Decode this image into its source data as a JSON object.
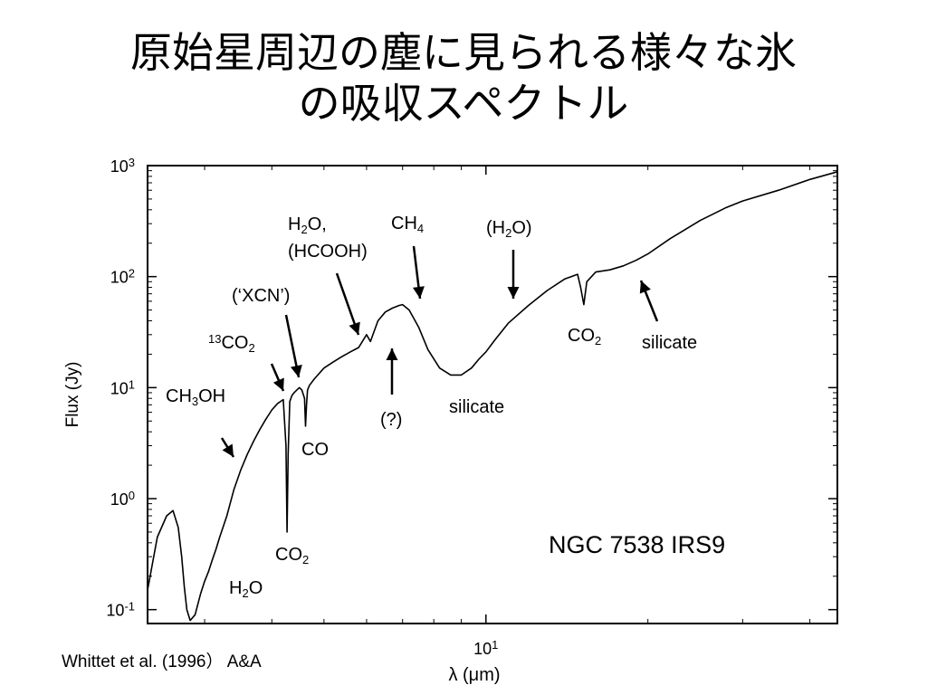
{
  "slide": {
    "title_line1": "原始星周辺の塵に見られる様々な氷",
    "title_line2": "の吸収スペクトル",
    "citation": "Whittet et al. (1996） A&A"
  },
  "chart_data": {
    "type": "line",
    "title": "",
    "xlabel": "λ (μm)",
    "ylabel": "Flux (Jy)",
    "x_scale": "log",
    "y_scale": "log",
    "xlim": [
      2.35,
      45
    ],
    "ylim": [
      0.075,
      1000
    ],
    "x_major_tick_label": {
      "x": 10,
      "base": "10",
      "exp": "1"
    },
    "y_tick_labels": [
      {
        "y": 0.1,
        "base": "10",
        "exp": "-1"
      },
      {
        "y": 1,
        "base": "10",
        "exp": "0"
      },
      {
        "y": 10,
        "base": "10",
        "exp": "1"
      },
      {
        "y": 100,
        "base": "10",
        "exp": "2"
      },
      {
        "y": 1000,
        "base": "10",
        "exp": "3"
      }
    ],
    "object_label": "NGC 7538  IRS9",
    "grid": false,
    "series": [
      {
        "name": "",
        "x": [
          2.35,
          2.45,
          2.55,
          2.62,
          2.68,
          2.72,
          2.75,
          2.78,
          2.82,
          2.88,
          2.95,
          3.0,
          3.05,
          3.1,
          3.15,
          3.2,
          3.3,
          3.4,
          3.5,
          3.6,
          3.7,
          3.8,
          3.9,
          4.0,
          4.1,
          4.2,
          4.25,
          4.27,
          4.29,
          4.32,
          4.36,
          4.4,
          4.45,
          4.5,
          4.55,
          4.6,
          4.62,
          4.64,
          4.66,
          4.7,
          4.8,
          5.0,
          5.2,
          5.4,
          5.6,
          5.8,
          6.0,
          6.1,
          6.3,
          6.5,
          6.7,
          6.9,
          7.0,
          7.2,
          7.5,
          7.8,
          8.2,
          8.6,
          9.0,
          9.4,
          9.7,
          10.0,
          10.4,
          11.0,
          12.0,
          13.0,
          14.0,
          14.8,
          15.0,
          15.2,
          15.4,
          16.0,
          17.0,
          18.0,
          19.0,
          20.0,
          22.0,
          25.0,
          28.0,
          30.0,
          35.0,
          40.0,
          45.0
        ],
        "y": [
          0.15,
          0.45,
          0.7,
          0.78,
          0.55,
          0.3,
          0.16,
          0.1,
          0.08,
          0.09,
          0.14,
          0.18,
          0.22,
          0.28,
          0.35,
          0.45,
          0.7,
          1.2,
          1.8,
          2.5,
          3.3,
          4.2,
          5.2,
          6.3,
          7.2,
          7.8,
          3.0,
          0.5,
          2.5,
          7.5,
          8.5,
          9.0,
          9.5,
          10.0,
          9.5,
          8.0,
          4.5,
          7.0,
          9.5,
          10.5,
          12.0,
          15.0,
          17.0,
          19.0,
          21.0,
          23.0,
          30.0,
          26.0,
          40.0,
          48.0,
          52.0,
          55.0,
          56.0,
          50.0,
          35.0,
          22.0,
          15.0,
          13.0,
          13.0,
          15.0,
          18.0,
          21.0,
          27.0,
          38.0,
          55.0,
          75.0,
          95.0,
          105.0,
          80.0,
          56.0,
          90.0,
          110.0,
          115.0,
          125.0,
          140.0,
          160.0,
          220.0,
          320.0,
          420.0,
          480.0,
          600.0,
          750.0,
          880.0
        ]
      }
    ],
    "annotations": [
      {
        "lines": [
          {
            "t": "CH",
            "sub": "3",
            "t2": "OH"
          }
        ],
        "x": 3.5,
        "y": 2.4
      },
      {
        "lines": [
          {
            "sup": "13",
            "t": "CO",
            "sub": "2"
          }
        ],
        "x": 4.38,
        "y": 7.8
      },
      {
        "lines": [
          {
            "t": "(‘XCN’)"
          }
        ],
        "x": 4.62,
        "y": 8.6
      },
      {
        "lines": [
          {
            "t": "H",
            "sub": "2",
            "t2": "O,"
          },
          {
            "t": "(HCOOH)"
          }
        ],
        "x": 6.0,
        "y": 28
      },
      {
        "lines": [
          {
            "t": "(?)"
          }
        ],
        "x": 6.85,
        "y": 25
      },
      {
        "lines": [
          {
            "t": "CH",
            "sub": "4"
          }
        ],
        "x": 7.7,
        "y": 60
      },
      {
        "lines": [
          {
            "t": "(H",
            "sub": "2",
            "t2": "O)"
          }
        ],
        "x": 12.0,
        "y": 80
      },
      {
        "lines": [
          {
            "t": "CO",
            "sub": "2"
          }
        ],
        "x": 15.2,
        "y": 45
      },
      {
        "lines": [
          {
            "t": "silicate"
          }
        ],
        "x": 20.0,
        "y": 120
      },
      {
        "lines": [
          {
            "t": "silicate"
          }
        ],
        "x": 9.7,
        "y": 9.0
      },
      {
        "lines": [
          {
            "t": "CO"
          }
        ],
        "x": 4.6,
        "y": 2.0
      },
      {
        "lines": [
          {
            "t": "CO",
            "sub": "2"
          }
        ],
        "x": 4.27,
        "y": 0.3
      },
      {
        "lines": [
          {
            "t": "H",
            "sub": "2",
            "t2": "O"
          }
        ],
        "x": 3.05,
        "y": 0.1
      }
    ]
  }
}
